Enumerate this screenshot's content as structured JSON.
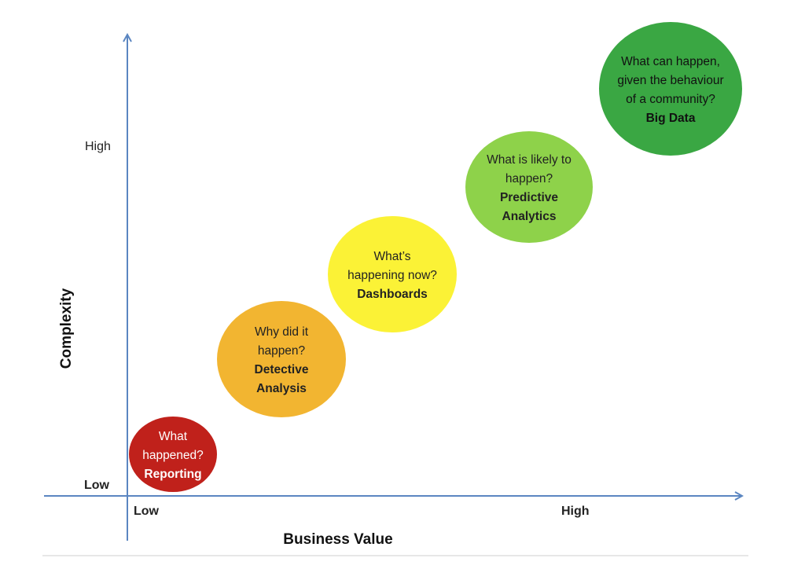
{
  "axes": {
    "x_title": "Business Value",
    "y_title": "Complexity",
    "x_low": "Low",
    "x_high": "High",
    "y_low": "Low",
    "y_high": "High",
    "axis_color": "#5b86c1"
  },
  "stages": [
    {
      "question": [
        "What",
        "happened?"
      ],
      "title": [
        "Reporting"
      ],
      "fill": "#c0211b",
      "text_color": "#ffffff"
    },
    {
      "question": [
        "Why did it",
        "happen?"
      ],
      "title": [
        "Detective",
        "Analysis"
      ],
      "fill": "#f2b531",
      "text_color": "#222222"
    },
    {
      "question": [
        "What’s",
        "happening now?"
      ],
      "title": [
        "Dashboards"
      ],
      "fill": "#fbf236",
      "text_color": "#222222"
    },
    {
      "question": [
        "What is likely to",
        "happen?"
      ],
      "title": [
        "Predictive",
        "Analytics"
      ],
      "fill": "#8ed24a",
      "text_color": "#222222"
    },
    {
      "question": [
        "What can happen,",
        "given the behaviour",
        "of a community?"
      ],
      "title": [
        "Big Data"
      ],
      "fill": "#3aa743",
      "text_color": "#111111"
    }
  ]
}
